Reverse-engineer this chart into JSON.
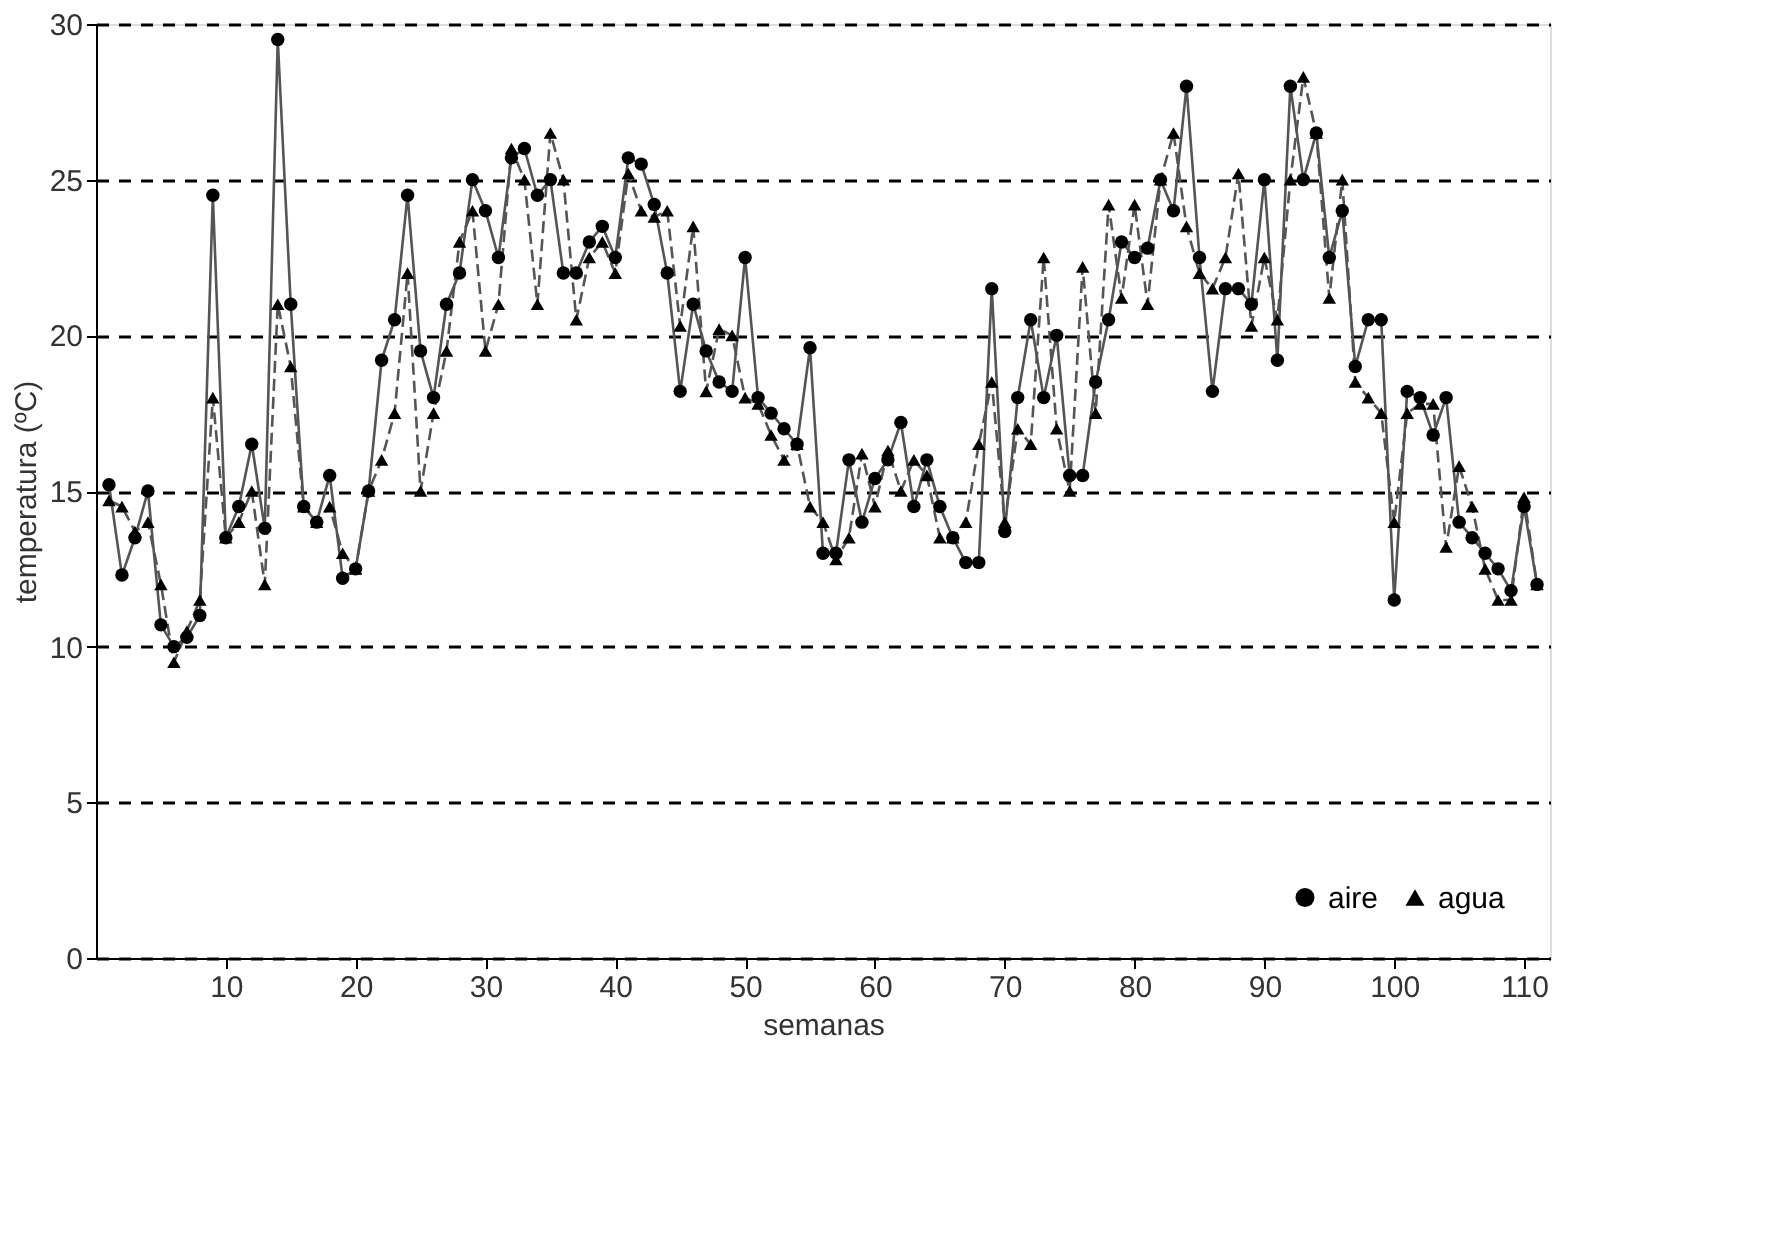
{
  "chart_data": {
    "type": "line",
    "xlabel": "semanas",
    "ylabel": "temperatura (ºC)",
    "x": [
      1,
      2,
      3,
      4,
      5,
      6,
      7,
      8,
      9,
      10,
      11,
      12,
      13,
      14,
      15,
      16,
      17,
      18,
      19,
      20,
      21,
      22,
      23,
      24,
      25,
      26,
      27,
      28,
      29,
      30,
      31,
      32,
      33,
      34,
      35,
      36,
      37,
      38,
      39,
      40,
      41,
      42,
      43,
      44,
      45,
      46,
      47,
      48,
      49,
      50,
      51,
      52,
      53,
      54,
      55,
      56,
      57,
      58,
      59,
      60,
      61,
      62,
      63,
      64,
      65,
      66,
      67,
      68,
      69,
      70,
      71,
      72,
      73,
      74,
      75,
      76,
      77,
      78,
      79,
      80,
      81,
      82,
      83,
      84,
      85,
      86,
      87,
      88,
      89,
      90,
      91,
      92,
      93,
      94,
      95,
      96,
      97,
      98,
      99,
      100,
      101,
      102,
      103,
      104,
      105,
      106,
      107,
      108,
      109,
      110,
      111
    ],
    "series": [
      {
        "name": "aire",
        "color": "#000000",
        "marker": "circle",
        "line_style": "solid",
        "values": [
          15.2,
          12.3,
          13.5,
          15,
          10.7,
          10,
          10.3,
          11,
          24.5,
          13.5,
          14.5,
          16.5,
          13.8,
          29.5,
          21,
          14.5,
          14,
          15.5,
          12.2,
          12.5,
          15,
          19.2,
          20.5,
          24.5,
          19.5,
          18,
          21,
          22,
          25,
          24,
          22.5,
          25.7,
          26,
          24.5,
          25,
          22,
          22,
          23,
          23.5,
          22.5,
          25.7,
          25.5,
          24.2,
          22,
          18.2,
          21,
          19.5,
          18.5,
          18.2,
          22.5,
          18,
          17.5,
          17,
          16.5,
          19.6,
          13,
          13,
          16,
          14,
          15.4,
          16,
          17.2,
          14.5,
          16,
          14.5,
          13.5,
          12.7,
          12.7,
          21.5,
          13.7,
          18,
          20.5,
          18,
          20,
          15.5,
          15.5,
          18.5,
          20.5,
          23,
          22.5,
          22.8,
          25,
          24,
          28,
          22.5,
          18.2,
          21.5,
          21.5,
          21,
          25,
          19.2,
          28,
          25,
          26.5,
          22.5,
          24,
          19,
          20.5,
          20.5,
          11.5,
          18.2,
          18,
          16.8,
          18,
          14,
          13.5,
          13,
          12.5,
          11.8,
          14.5,
          12
        ]
      },
      {
        "name": "agua",
        "color": "#000000",
        "marker": "triangle",
        "line_style": "dashed",
        "values": [
          14.7,
          14.5,
          13.7,
          14,
          12,
          9.5,
          10.5,
          11.5,
          18,
          13.5,
          14,
          15,
          12,
          21,
          19,
          14.5,
          14,
          14.5,
          13,
          12.5,
          15,
          16,
          17.5,
          22,
          15,
          17.5,
          19.5,
          23,
          24,
          19.5,
          21,
          26,
          25,
          21,
          26.5,
          25,
          20.5,
          22.5,
          23,
          22,
          25.2,
          24,
          23.8,
          24,
          20.3,
          23.5,
          18.2,
          20.2,
          20,
          18,
          17.8,
          16.8,
          16,
          16.5,
          14.5,
          14,
          12.8,
          13.5,
          16.2,
          14.5,
          16.3,
          15,
          16,
          15.5,
          13.5,
          13.5,
          14,
          16.5,
          18.5,
          14,
          17,
          16.5,
          22.5,
          17,
          15,
          22.2,
          17.5,
          24.2,
          21.2,
          24.2,
          21,
          25,
          26.5,
          23.5,
          22,
          21.5,
          22.5,
          25.2,
          20.3,
          22.5,
          20.5,
          25,
          28.3,
          26.5,
          21.2,
          25,
          18.5,
          18,
          17.5,
          14,
          17.5,
          17.8,
          17.8,
          13.2,
          15.8,
          14.5,
          12.5,
          11.5,
          11.5,
          14.8,
          12
        ]
      }
    ],
    "xlim": [
      0,
      112
    ],
    "xticks": [
      10,
      20,
      30,
      40,
      50,
      60,
      70,
      80,
      90,
      100,
      110
    ],
    "ylim": [
      0,
      30
    ],
    "yticks": [
      0,
      5,
      10,
      15,
      20,
      25,
      30
    ],
    "grid": "y",
    "legend": "bottom right"
  }
}
